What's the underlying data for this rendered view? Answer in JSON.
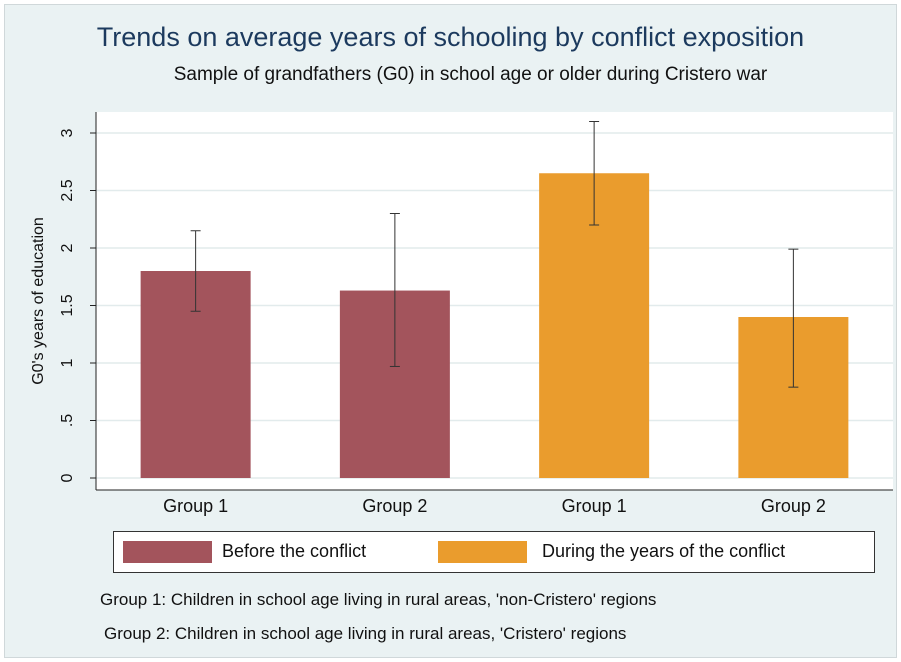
{
  "chart_data": {
    "type": "bar",
    "title": "Trends on average years of schooling by conflict exposition",
    "subtitle": "Sample of grandfathers (G0) in school age or older during Cristero war",
    "ylabel": "G0's years of education",
    "ylim": [
      0,
      3.2
    ],
    "yticks": [
      {
        "value": 0,
        "label": "0"
      },
      {
        "value": 0.5,
        "label": ".5"
      },
      {
        "value": 1,
        "label": "1"
      },
      {
        "value": 1.5,
        "label": "1.5"
      },
      {
        "value": 2,
        "label": "2"
      },
      {
        "value": 2.5,
        "label": "2.5"
      },
      {
        "value": 3,
        "label": "3"
      }
    ],
    "grid": true,
    "legend_position": "bottom",
    "bars": [
      {
        "label": "Group 1",
        "series": 0,
        "value": 1.8,
        "ci_low": 1.45,
        "ci_high": 2.15
      },
      {
        "label": "Group 2",
        "series": 0,
        "value": 1.63,
        "ci_low": 0.97,
        "ci_high": 2.3
      },
      {
        "label": "Group 1",
        "series": 1,
        "value": 2.65,
        "ci_low": 2.2,
        "ci_high": 3.1
      },
      {
        "label": "Group 2",
        "series": 1,
        "value": 1.4,
        "ci_low": 0.79,
        "ci_high": 1.99
      }
    ],
    "series": [
      {
        "name": "Before the conflict",
        "color": "#a3545c"
      },
      {
        "name": "During the years of the conflict",
        "color": "#ea9c2d"
      }
    ]
  },
  "notes": [
    "Group 1: Children in school age living in rural areas, 'non-Cristero' regions",
    "Group 2: Children in school age living in rural areas, 'Cristero' regions"
  ]
}
